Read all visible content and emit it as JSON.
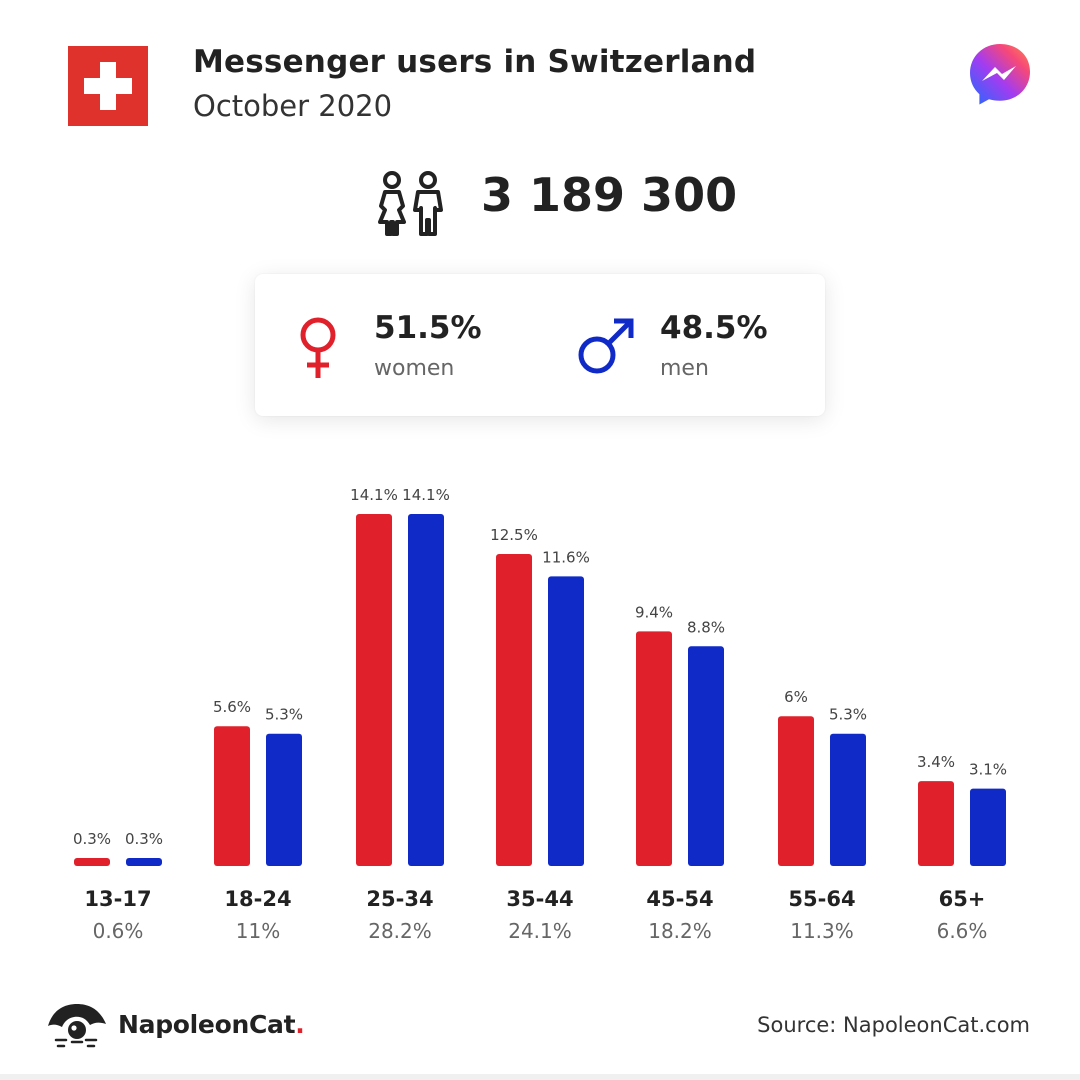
{
  "header": {
    "title": "Messenger users in Switzerland",
    "subtitle": "October 2020"
  },
  "total": {
    "value": "3 189 300",
    "icon": "people-icon"
  },
  "gender": {
    "women_pct": "51.5%",
    "women_label": "women",
    "men_pct": "48.5%",
    "men_label": "men"
  },
  "colors": {
    "women": "#e0202a",
    "men": "#0f2ac7",
    "flag_red": "#e0322c"
  },
  "chart_data": {
    "type": "bar",
    "categories": [
      "13-17",
      "18-24",
      "25-34",
      "35-44",
      "45-54",
      "55-64",
      "65+"
    ],
    "category_totals": [
      "0.6%",
      "11%",
      "28.2%",
      "24.1%",
      "18.2%",
      "11.3%",
      "6.6%"
    ],
    "series": [
      {
        "name": "women",
        "color": "#e0202a",
        "values": [
          0.3,
          5.6,
          14.1,
          12.5,
          9.4,
          6,
          3.4
        ],
        "labels": [
          "0.3%",
          "5.6%",
          "14.1%",
          "12.5%",
          "9.4%",
          "6%",
          "3.4%"
        ]
      },
      {
        "name": "men",
        "color": "#0f2ac7",
        "values": [
          0.3,
          5.3,
          14.1,
          11.6,
          8.8,
          5.3,
          3.1
        ],
        "labels": [
          "0.3%",
          "5.3%",
          "14.1%",
          "11.6%",
          "8.8%",
          "5.3%",
          "3.1%"
        ]
      }
    ],
    "ylim": [
      0,
      14.1
    ],
    "grid": false,
    "legend": "none"
  },
  "footer": {
    "brand": "NapoleonCat",
    "brand_dot": ".",
    "source": "Source: NapoleonCat.com"
  }
}
